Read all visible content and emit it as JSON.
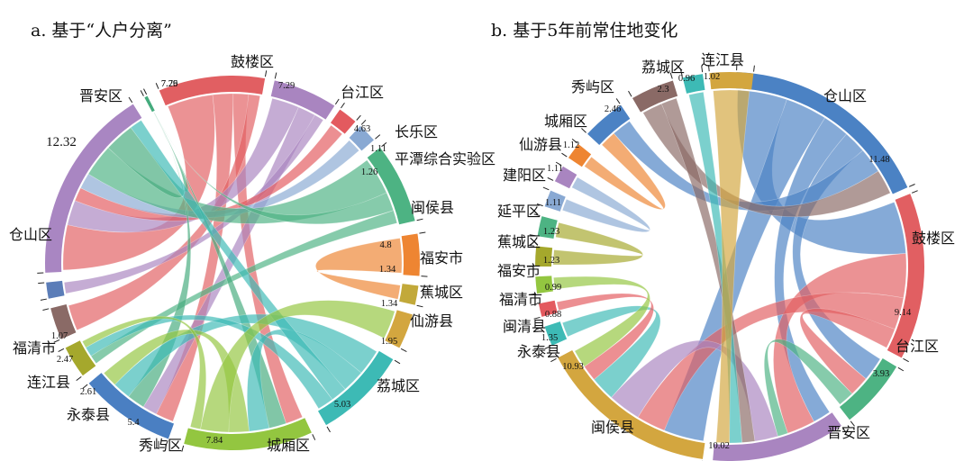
{
  "chart_data": [
    {
      "type": "chord",
      "panel_title": "a. 基于“人户分离”",
      "groups": [
        {
          "name": "鼓楼区",
          "value": 7.29,
          "color": "#e15f62"
        },
        {
          "name": "台江区",
          "value": 4.63,
          "color": "#a985c0"
        },
        {
          "name": "长乐区",
          "value": 1.11,
          "color": "#e35a5f"
        },
        {
          "name": "平潭综合实验区",
          "value": 1.26,
          "color": "#89a9d3"
        },
        {
          "name": "闽侯县",
          "value": 4.8,
          "color": "#4db383"
        },
        {
          "name": "福安市",
          "value": 1.34,
          "color": "#ee8532"
        },
        {
          "name": "蕉城区",
          "value": 1.34,
          "color": "#c2a93a"
        },
        {
          "name": "仙游县",
          "value": 1.95,
          "color": "#d3a63f"
        },
        {
          "name": "荔城区",
          "value": 5.03,
          "color": "#3dbab5"
        },
        {
          "name": "城厢区",
          "value": 7.84,
          "color": "#93c640"
        },
        {
          "name": "秀屿区",
          "value": 5.4,
          "color": "#4a7fc2"
        },
        {
          "name": "永泰县",
          "value": 2.61,
          "color": "#a5a82c"
        },
        {
          "name": "连江县",
          "value": 2.47,
          "color": "#8a6a66"
        },
        {
          "name": "福清市",
          "value": 1.07,
          "color": "#5b7db8"
        },
        {
          "name": "仓山区",
          "value": 12.32,
          "color": "#a986c2"
        },
        {
          "name": "晋安区",
          "value": 7.76,
          "color": "#45ab7d"
        }
      ],
      "flows": [
        [
          "鼓楼区",
          "仓山区",
          3.6
        ],
        [
          "鼓楼区",
          "秀屿区",
          1.6
        ],
        [
          "鼓楼区",
          "城厢区",
          1.2
        ],
        [
          "鼓楼区",
          "连江县",
          0.9
        ],
        [
          "台江区",
          "仓山区",
          2.0
        ],
        [
          "台江区",
          "秀屿区",
          1.3
        ],
        [
          "台江区",
          "福清市",
          0.7
        ],
        [
          "长乐区",
          "仓山区",
          1.1
        ],
        [
          "平潭综合实验区",
          "仓山区",
          1.26
        ],
        [
          "闽侯县",
          "仓山区",
          2.6
        ],
        [
          "闽侯县",
          "晋安区",
          1.3
        ],
        [
          "闽侯县",
          "永泰县",
          0.9
        ],
        [
          "晋安区",
          "仓山区",
          2.4
        ],
        [
          "晋安区",
          "秀屿区",
          1.6
        ],
        [
          "晋安区",
          "城厢区",
          1.2
        ],
        [
          "荔城区",
          "秀屿区",
          1.6
        ],
        [
          "荔城区",
          "城厢区",
          1.4
        ],
        [
          "荔城区",
          "仓山区",
          1.0
        ],
        [
          "荔城区",
          "永泰县",
          1.0
        ],
        [
          "城厢区",
          "秀屿区",
          1.4
        ],
        [
          "城厢区",
          "仙游县",
          1.95
        ],
        [
          "城厢区",
          "永泰县",
          0.71
        ],
        [
          "福安市",
          "蕉城区",
          1.34
        ]
      ]
    },
    {
      "type": "chord",
      "panel_title": "b. 基于5年前常住地变化",
      "groups": [
        {
          "name": "仓山区",
          "value": 11.48,
          "color": "#4b82c4"
        },
        {
          "name": "鼓楼区",
          "value": 9.14,
          "color": "#e15f62"
        },
        {
          "name": "台江区",
          "value": 3.93,
          "color": "#4db383"
        },
        {
          "name": "晋安区",
          "value": null,
          "color": "#a985c0"
        },
        {
          "name": "闽侯县",
          "value": 10.02,
          "color": "#d3a63f"
        },
        {
          "name": "永泰县",
          "value": 1.35,
          "color": "#3dbab5"
        },
        {
          "name": "闽清县",
          "value": 0.88,
          "color": "#e35a5f"
        },
        {
          "name": "福清市",
          "value": 0.99,
          "color": "#93c640"
        },
        {
          "name": "福安市",
          "value": 1.23,
          "color": "#a5a82c"
        },
        {
          "name": "蕉城区",
          "value": 1.23,
          "color": "#4db383"
        },
        {
          "name": "延平区",
          "value": 1.11,
          "color": "#89a9d3"
        },
        {
          "name": "建阳区",
          "value": 1.11,
          "color": "#a985c0"
        },
        {
          "name": "仙游县",
          "value": 1.12,
          "color": "#ee8532"
        },
        {
          "name": "城厢区",
          "value": 2.46,
          "color": "#4b82c4"
        },
        {
          "name": "秀屿区",
          "value": 2.3,
          "color": "#8a6a66"
        },
        {
          "name": "荔城区",
          "value": 0.96,
          "color": "#3dbab5"
        },
        {
          "name": "连江县",
          "value": 1.02,
          "color": "#d3a63f"
        }
      ],
      "extra_labels": [
        "10.93"
      ],
      "flows": [
        [
          "仓山区",
          "鼓楼区",
          2.6
        ],
        [
          "仓山区",
          "闽侯县",
          2.2
        ],
        [
          "仓山区",
          "晋安区",
          1.4
        ],
        [
          "仓山区",
          "台江区",
          1.2
        ],
        [
          "鼓楼区",
          "晋安区",
          2.2
        ],
        [
          "鼓楼区",
          "闽侯县",
          1.6
        ],
        [
          "鼓楼区",
          "台江区",
          1.0
        ],
        [
          "台江区",
          "晋安区",
          0.8
        ],
        [
          "晋安区",
          "闽侯县",
          1.8
        ],
        [
          "永泰县",
          "闽侯县",
          1.35
        ],
        [
          "闽清县",
          "闽侯县",
          0.88
        ],
        [
          "福清市",
          "闽侯县",
          0.99
        ],
        [
          "福安市",
          "蕉城区",
          1.23
        ],
        [
          "延平区",
          "建阳区",
          1.11
        ],
        [
          "仙游县",
          "城厢区",
          1.12
        ],
        [
          "城厢区",
          "仓山区",
          1.34
        ],
        [
          "秀屿区",
          "仓山区",
          1.3
        ],
        [
          "秀屿区",
          "晋安区",
          1.0
        ],
        [
          "荔城区",
          "晋安区",
          0.96
        ],
        [
          "连江县",
          "晋安区",
          1.02
        ]
      ]
    }
  ]
}
